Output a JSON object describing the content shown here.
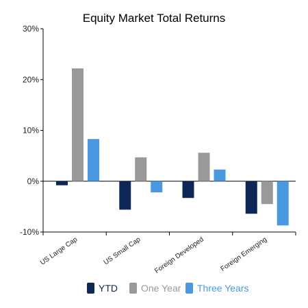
{
  "chart_data": {
    "type": "bar",
    "title": "Equity Market Total Returns",
    "xlabel": "",
    "ylabel": "",
    "ylim": [
      -10,
      30
    ],
    "yticks": [
      30,
      20,
      10,
      0,
      -10
    ],
    "ytick_labels": [
      "30%",
      "20%",
      "10%",
      "0%",
      "-10%"
    ],
    "categories": [
      "US Large Cap",
      "US Small Cap",
      "Foreign Developed",
      "Foreign Emerging"
    ],
    "series": [
      {
        "name": "YTD",
        "values": [
          -0.8,
          -5.6,
          -3.3,
          -6.4
        ],
        "color": "#0d2856"
      },
      {
        "name": "One Year",
        "values": [
          22.2,
          4.7,
          5.6,
          -4.5
        ],
        "color": "#999999"
      },
      {
        "name": "Three Years",
        "values": [
          8.3,
          -2.2,
          2.3,
          -8.7
        ],
        "color": "#4a98e0"
      }
    ],
    "legend_position": "bottom",
    "grid": false
  }
}
